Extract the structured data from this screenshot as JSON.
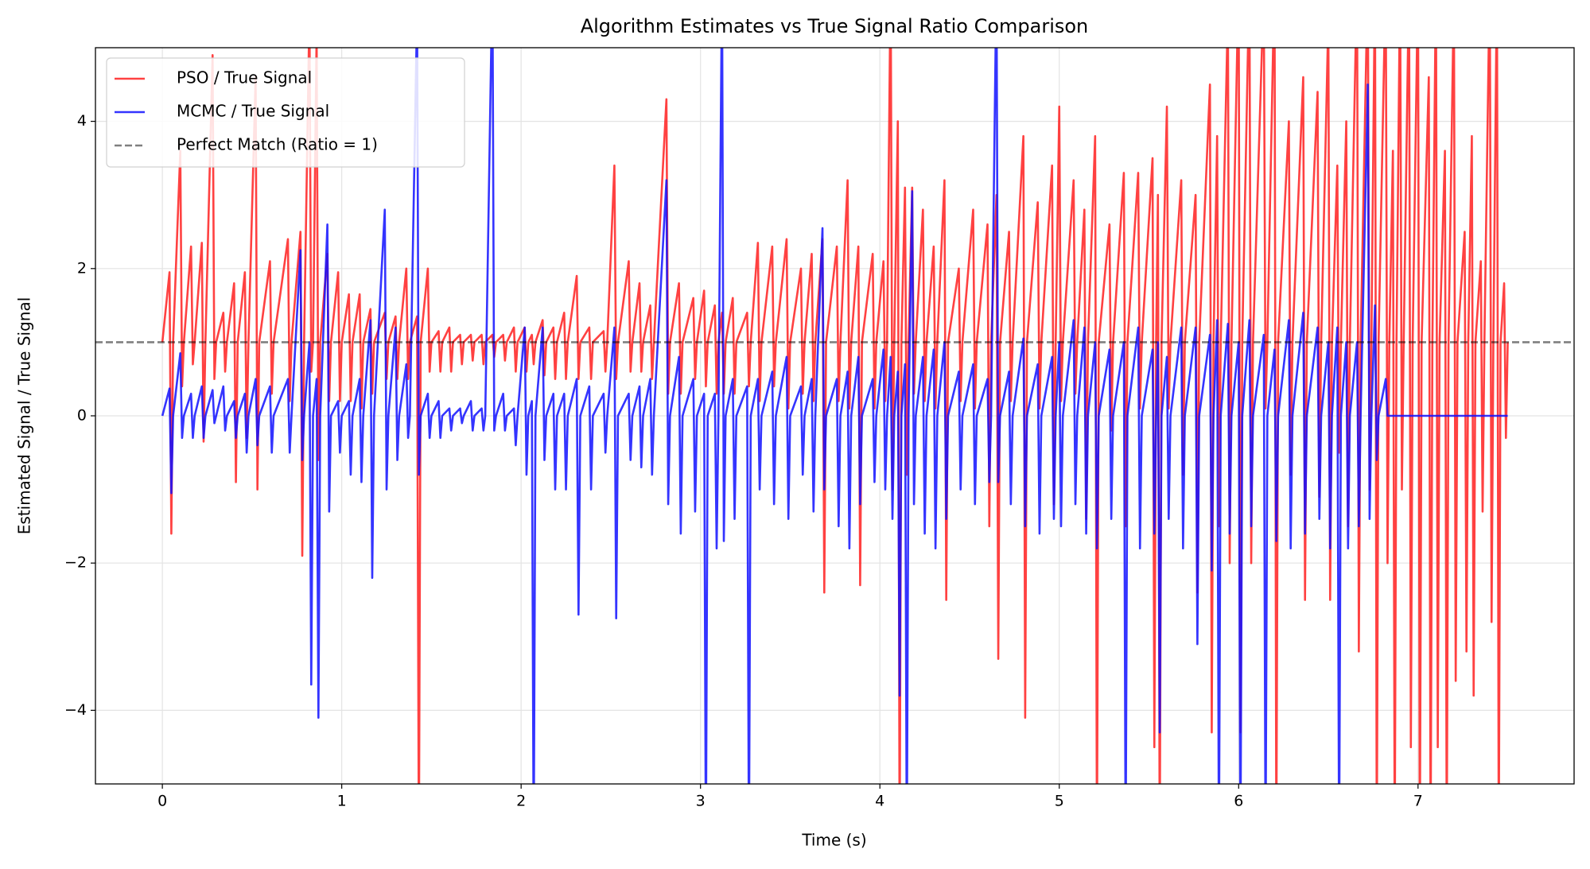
{
  "chart_data": {
    "type": "line",
    "title": "Algorithm Estimates vs True Signal Ratio Comparison",
    "x_label": "Time (s)",
    "y_label": "Estimated Signal / True Signal",
    "xlim": [
      -0.373,
      7.87
    ],
    "ylim": [
      -5,
      5
    ],
    "xticks": [
      0,
      1,
      2,
      3,
      4,
      5,
      6,
      7
    ],
    "yticks": [
      {
        "value": -4,
        "label": "−4"
      },
      {
        "value": -2,
        "label": "−2"
      },
      0,
      2,
      4
    ],
    "grid": true,
    "legend": "upper left",
    "reference_line": {
      "name": "Perfect Match (Ratio = 1)",
      "value": 1,
      "color": "#000000",
      "style": "dashed"
    },
    "x": [
      0,
      0.04,
      0.05,
      0.06,
      0.1,
      0.11,
      0.12,
      0.16,
      0.17,
      0.18,
      0.22,
      0.23,
      0.24,
      0.28,
      0.29,
      0.3,
      0.34,
      0.35,
      0.36,
      0.4,
      0.41,
      0.42,
      0.46,
      0.47,
      0.48,
      0.52,
      0.53,
      0.54,
      0.6,
      0.61,
      0.62,
      0.7,
      0.71,
      0.72,
      0.77,
      0.78,
      0.79,
      0.82,
      0.83,
      0.84,
      0.86,
      0.87,
      0.88,
      0.92,
      0.93,
      0.94,
      0.98,
      0.99,
      1,
      1.04,
      1.05,
      1.06,
      1.1,
      1.11,
      1.12,
      1.16,
      1.17,
      1.18,
      1.24,
      1.25,
      1.26,
      1.3,
      1.31,
      1.32,
      1.36,
      1.37,
      1.38,
      1.42,
      1.43,
      1.44,
      1.48,
      1.49,
      1.5,
      1.54,
      1.55,
      1.56,
      1.6,
      1.61,
      1.62,
      1.66,
      1.67,
      1.68,
      1.72,
      1.73,
      1.74,
      1.78,
      1.79,
      1.8,
      1.84,
      1.85,
      1.86,
      1.9,
      1.91,
      1.92,
      1.96,
      1.97,
      1.98,
      2.02,
      2.03,
      2.04,
      2.06,
      2.07,
      2.08,
      2.12,
      2.13,
      2.14,
      2.18,
      2.19,
      2.2,
      2.24,
      2.25,
      2.26,
      2.31,
      2.32,
      2.33,
      2.38,
      2.39,
      2.4,
      2.46,
      2.47,
      2.48,
      2.52,
      2.53,
      2.54,
      2.6,
      2.61,
      2.62,
      2.66,
      2.67,
      2.68,
      2.72,
      2.73,
      2.74,
      2.81,
      2.82,
      2.83,
      2.88,
      2.89,
      2.9,
      2.96,
      2.97,
      2.98,
      3.02,
      3.03,
      3.04,
      3.08,
      3.09,
      3.1,
      3.12,
      3.13,
      3.14,
      3.18,
      3.19,
      3.2,
      3.26,
      3.27,
      3.28,
      3.32,
      3.33,
      3.34,
      3.4,
      3.41,
      3.42,
      3.48,
      3.49,
      3.5,
      3.56,
      3.57,
      3.58,
      3.62,
      3.63,
      3.64,
      3.68,
      3.69,
      3.7,
      3.76,
      3.77,
      3.78,
      3.82,
      3.83,
      3.84,
      3.88,
      3.89,
      3.9,
      3.96,
      3.97,
      3.98,
      4.02,
      4.03,
      4.04,
      4.06,
      4.07,
      4.08,
      4.1,
      4.11,
      4.12,
      4.14,
      4.15,
      4.16,
      4.18,
      4.19,
      4.2,
      4.24,
      4.25,
      4.26,
      4.3,
      4.31,
      4.32,
      4.36,
      4.37,
      4.38,
      4.44,
      4.45,
      4.46,
      4.52,
      4.53,
      4.54,
      4.6,
      4.61,
      4.62,
      4.65,
      4.66,
      4.67,
      4.72,
      4.73,
      4.74,
      4.8,
      4.81,
      4.82,
      4.88,
      4.89,
      4.9,
      4.96,
      4.97,
      4.98,
      5,
      5.01,
      5.02,
      5.08,
      5.09,
      5.1,
      5.14,
      5.15,
      5.16,
      5.2,
      5.21,
      5.22,
      5.28,
      5.29,
      5.3,
      5.36,
      5.37,
      5.38,
      5.44,
      5.45,
      5.46,
      5.52,
      5.53,
      5.54,
      5.55,
      5.56,
      5.57,
      5.6,
      5.61,
      5.62,
      5.68,
      5.69,
      5.7,
      5.76,
      5.77,
      5.78,
      5.84,
      5.85,
      5.86,
      5.88,
      5.89,
      5.9,
      5.94,
      5.95,
      5.96,
      6,
      6.01,
      6.02,
      6.06,
      6.07,
      6.08,
      6.14,
      6.15,
      6.16,
      6.2,
      6.21,
      6.22,
      6.28,
      6.29,
      6.3,
      6.36,
      6.37,
      6.38,
      6.44,
      6.45,
      6.46,
      6.5,
      6.51,
      6.52,
      6.55,
      6.56,
      6.57,
      6.6,
      6.61,
      6.62,
      6.66,
      6.67,
      6.68,
      6.72,
      6.73,
      6.74,
      6.76,
      6.77,
      6.78,
      6.82,
      6.83,
      6.84,
      6.86,
      6.87,
      6.88,
      6.9,
      6.91,
      6.92,
      6.95,
      6.96,
      6.97,
      7,
      7.01,
      7.02,
      7.06,
      7.07,
      7.08,
      7.1,
      7.11,
      7.12,
      7.15,
      7.16,
      7.17,
      7.2,
      7.21,
      7.22,
      7.26,
      7.27,
      7.28,
      7.3,
      7.31,
      7.32,
      7.35,
      7.36,
      7.37,
      7.4,
      7.41,
      7.42,
      7.44,
      7.45,
      7.46,
      7.48,
      7.49,
      7.5
    ],
    "series": [
      {
        "name": "PSO / True Signal",
        "color": "#ff2020",
        "values": [
          1,
          1.95,
          -1.6,
          1,
          3.6,
          0.4,
          1,
          2.3,
          0.7,
          1,
          2.35,
          -0.35,
          1,
          4.9,
          0.5,
          1,
          1.4,
          0.6,
          1,
          1.8,
          -0.9,
          1,
          1.95,
          -0.3,
          1,
          4.6,
          -1.0,
          1,
          2.1,
          0.3,
          1,
          2.4,
          0.2,
          1,
          2.5,
          -1.9,
          1,
          5.5,
          0.6,
          1,
          5.2,
          -0.6,
          1,
          2.2,
          0.2,
          1,
          1.95,
          0.2,
          1,
          1.65,
          0.2,
          1,
          1.65,
          0.1,
          1,
          1.45,
          0.3,
          1,
          1.4,
          0.5,
          1,
          1.35,
          0.5,
          1,
          2.0,
          0.5,
          1,
          1.35,
          -6,
          1,
          2.0,
          0.6,
          1,
          1.15,
          0.6,
          1,
          1.2,
          0.6,
          1,
          1.1,
          0.7,
          1,
          1.1,
          0.75,
          1,
          1.1,
          0.7,
          1,
          1.1,
          0.8,
          1,
          1.1,
          0.75,
          1,
          1.2,
          0.6,
          1,
          1.2,
          0.6,
          1,
          1.1,
          0.7,
          1,
          1.3,
          0.55,
          1,
          1.2,
          0.5,
          1,
          1.4,
          0.5,
          1,
          1.9,
          0.5,
          1,
          1.2,
          0.5,
          1,
          1.15,
          0.6,
          1,
          3.4,
          0.5,
          1,
          2.1,
          0.6,
          1,
          1.8,
          0.6,
          1,
          1.5,
          0.5,
          1,
          4.3,
          0.3,
          1,
          1.8,
          0.3,
          1,
          1.6,
          0.5,
          1,
          1.7,
          0.4,
          1,
          1.5,
          0.3,
          1,
          1.4,
          0.3,
          1,
          1.6,
          0.3,
          1,
          1.4,
          0.4,
          1,
          2.35,
          0.2,
          1,
          2.3,
          0.4,
          1,
          2.4,
          0.1,
          1,
          2.0,
          0.3,
          1,
          2.2,
          0.2,
          1,
          2.4,
          -2.4,
          1,
          2.3,
          0.2,
          1,
          3.2,
          0.1,
          1,
          2.3,
          -2.3,
          1,
          2.2,
          0.1,
          1,
          2.1,
          0.2,
          1,
          6,
          -1.0,
          1,
          4.0,
          -6,
          1,
          3.1,
          -0.8,
          1,
          3.1,
          0.3,
          1,
          2.8,
          0.2,
          1,
          2.3,
          0.1,
          1,
          3.2,
          -2.5,
          1,
          2.0,
          0.2,
          1,
          2.8,
          0.1,
          1,
          2.6,
          -1.5,
          1,
          3.0,
          -3.3,
          1,
          2.5,
          0.2,
          1,
          3.8,
          -4.1,
          1,
          2.9,
          0.1,
          1,
          3.4,
          -1.2,
          1,
          4.2,
          0.2,
          1,
          3.2,
          0.3,
          1,
          2.8,
          -1.4,
          1,
          3.8,
          -6,
          1,
          2.6,
          -0.2,
          1,
          3.3,
          -1.5,
          1,
          3.3,
          0.1,
          1,
          3.5,
          -4.5,
          1,
          3.0,
          -6,
          1,
          4.2,
          0.1,
          1,
          3.2,
          -0.8,
          1,
          3.0,
          -2.4,
          1,
          4.5,
          -4.3,
          1,
          3.8,
          -1.5,
          1,
          5.5,
          -2.0,
          1,
          6,
          -4.3,
          1,
          6,
          -2.0,
          1,
          5.8,
          0.1,
          1,
          6,
          -6,
          1,
          4.0,
          -0.8,
          1,
          4.6,
          -2.5,
          1,
          4.4,
          -1.1,
          1,
          5.4,
          -2.5,
          1,
          3.4,
          -0.5,
          1,
          4.0,
          -1.5,
          1,
          6,
          -3.2,
          1,
          6,
          -1.0,
          1,
          6,
          -6,
          1,
          6,
          -2.0,
          1,
          3.6,
          -6,
          1,
          6,
          -1.0,
          1,
          6,
          -4.5,
          1,
          6,
          -6,
          1,
          4.6,
          -6,
          1,
          6,
          -4.5,
          1,
          3.6,
          -6,
          1,
          5.8,
          -3.6,
          1,
          2.5,
          -3.2,
          1,
          3.8,
          -3.8,
          1,
          2.1,
          -1.3,
          1,
          6,
          -2.8,
          1,
          6,
          -6,
          1,
          1.8,
          -0.3,
          1
        ]
      },
      {
        "name": "MCMC / True Signal",
        "color": "#1010ff",
        "values": [
          0,
          0.37,
          -1.05,
          0,
          0.85,
          -0.3,
          0,
          0.3,
          -0.3,
          0,
          0.4,
          -0.3,
          0,
          0.35,
          -0.1,
          0,
          0.4,
          -0.2,
          0,
          0.2,
          -0.3,
          0,
          0.3,
          -0.5,
          0,
          0.5,
          -0.4,
          0,
          0.4,
          -0.5,
          0,
          0.5,
          -0.5,
          0,
          2.25,
          -0.6,
          0,
          1.0,
          -3.65,
          0,
          0.5,
          -4.1,
          0,
          2.6,
          -1.3,
          0,
          0.2,
          -0.5,
          0,
          0.2,
          -0.8,
          0,
          0.5,
          -0.9,
          0,
          1.3,
          -2.2,
          0,
          2.8,
          -1.0,
          0,
          1.2,
          -0.6,
          0,
          0.7,
          -0.3,
          0,
          5.5,
          -0.8,
          0,
          0.3,
          -0.3,
          0,
          0.2,
          -0.3,
          0,
          0.1,
          -0.2,
          0,
          0.1,
          -0.1,
          0,
          0.2,
          -0.2,
          0,
          0.1,
          -0.2,
          0,
          6,
          -0.2,
          0,
          0.3,
          -0.2,
          0,
          0.1,
          -0.4,
          0,
          1.2,
          -0.8,
          0,
          0.2,
          -6,
          0,
          1.2,
          -0.6,
          0,
          0.3,
          -1.0,
          0,
          0.3,
          -1.0,
          0,
          0.5,
          -2.7,
          0,
          0.4,
          -1.0,
          0,
          0.3,
          -0.5,
          0,
          1.2,
          -2.75,
          0,
          0.3,
          -0.6,
          0,
          0.4,
          -0.7,
          0,
          0.5,
          -0.8,
          0,
          3.2,
          -1.2,
          0,
          0.8,
          -1.6,
          0,
          0.5,
          -1.3,
          0,
          0.3,
          -6,
          0,
          0.3,
          -1.8,
          0,
          6,
          -1.7,
          0,
          0.5,
          -1.4,
          0,
          0.4,
          -6,
          0,
          0.5,
          -1.0,
          0,
          0.6,
          -1.2,
          0,
          0.8,
          -1.4,
          0,
          0.4,
          -0.8,
          0,
          0.5,
          -1.3,
          0,
          2.55,
          -1.0,
          0,
          0.5,
          -1.5,
          0,
          0.6,
          -1.8,
          0,
          0.8,
          -1.2,
          0,
          0.5,
          -0.9,
          0,
          0.9,
          -1.0,
          0,
          0.8,
          -1.4,
          0,
          0.6,
          -3.8,
          0,
          0.7,
          -6,
          0,
          3.05,
          -1.2,
          0,
          0.8,
          -1.6,
          0,
          0.9,
          -1.8,
          0,
          1.0,
          -1.4,
          0,
          0.6,
          -1.0,
          0,
          0.7,
          -1.2,
          0,
          0.5,
          -0.9,
          0,
          6,
          -0.9,
          0,
          0.6,
          -1.2,
          0,
          1.05,
          -1.5,
          0,
          0.7,
          -1.6,
          0,
          0.8,
          -1.4,
          0,
          1.0,
          -1.5,
          0,
          1.3,
          -1.2,
          0,
          1.2,
          -1.6,
          0,
          1.0,
          -1.8,
          0,
          0.9,
          -1.4,
          0,
          1.0,
          -6,
          0,
          1.2,
          -1.8,
          0,
          0.9,
          -1.6,
          0,
          1.0,
          -4.3,
          0,
          0.8,
          -1.4,
          0,
          1.2,
          -1.8,
          0,
          1.2,
          -3.1,
          0,
          1.1,
          -2.1,
          0,
          1.3,
          -6,
          0,
          1.25,
          -1.6,
          0,
          1.0,
          -6,
          0,
          1.3,
          -1.5,
          0,
          1.1,
          -6,
          0,
          0.9,
          -1.7,
          0,
          1.3,
          -1.8,
          0,
          1.4,
          -1.6,
          0,
          1.2,
          -1.4,
          0,
          1.0,
          -1.8,
          0,
          1.2,
          -6,
          0,
          1.0,
          -1.8,
          0,
          1.0,
          -1.5,
          0,
          4.5,
          -1.4,
          0,
          1.5,
          -0.6,
          0,
          0.5,
          0,
          0,
          0,
          0,
          0,
          0,
          0,
          0,
          0,
          0,
          0,
          0,
          0,
          0,
          0,
          0,
          0,
          0,
          0,
          0,
          0,
          0,
          0,
          0,
          0,
          0,
          0,
          0,
          0,
          0,
          0,
          0,
          0,
          0,
          0,
          0,
          0,
          0,
          0,
          0,
          0,
          0,
          0,
          0
        ]
      }
    ]
  }
}
